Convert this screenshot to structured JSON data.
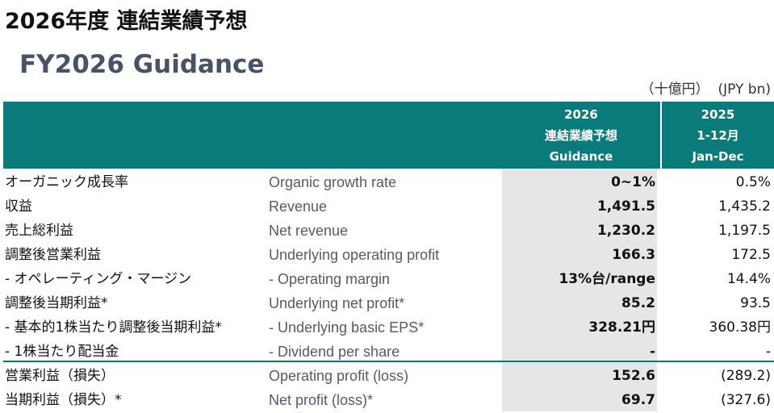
{
  "title_jp": "2026年度 連結業績予想",
  "title_en": "FY2026 Guidance",
  "units": "（十億円）  (JPY bn)",
  "columns": {
    "guidance": {
      "line1": "2026",
      "line2": "連結業績予想",
      "line3": "Guidance"
    },
    "prior": {
      "line1": "2025",
      "line2": "1-12月",
      "line3": "Jan-Dec"
    }
  },
  "rows": [
    {
      "jp": "オーガニック成長率",
      "en": "Organic growth rate",
      "guidance": "0~1%",
      "prior": "0.5%"
    },
    {
      "jp": "収益",
      "en": "Revenue",
      "guidance": "1,491.5",
      "prior": "1,435.2"
    },
    {
      "jp": "売上総利益",
      "en": "Net revenue",
      "guidance": "1,230.2",
      "prior": "1,197.5"
    },
    {
      "jp": "調整後営業利益",
      "en": "Underlying operating profit",
      "guidance": "166.3",
      "prior": "172.5"
    },
    {
      "jp": "- オペレーティング・マージン",
      "en": "- Operating margin",
      "guidance": "13%台/range",
      "prior": "14.4%"
    },
    {
      "jp": "調整後当期利益*",
      "en": "Underlying net profit*",
      "guidance": "85.2",
      "prior": "93.5"
    },
    {
      "jp": "- 基本的1株当たり調整後当期利益*",
      "en": "- Underlying basic EPS*",
      "guidance": "328.21円",
      "prior": "360.38円"
    },
    {
      "jp": "- 1株当たり配当金",
      "en": "- Dividend per share",
      "guidance": "-",
      "prior": "-"
    },
    {
      "jp": "営業利益（損失）",
      "en": "Operating profit (loss)",
      "guidance": "152.6",
      "prior": "(289.2)"
    },
    {
      "jp": "当期利益（損失）*",
      "en": "Net profit (loss)*",
      "guidance": "69.7",
      "prior": "(327.6)"
    }
  ]
}
